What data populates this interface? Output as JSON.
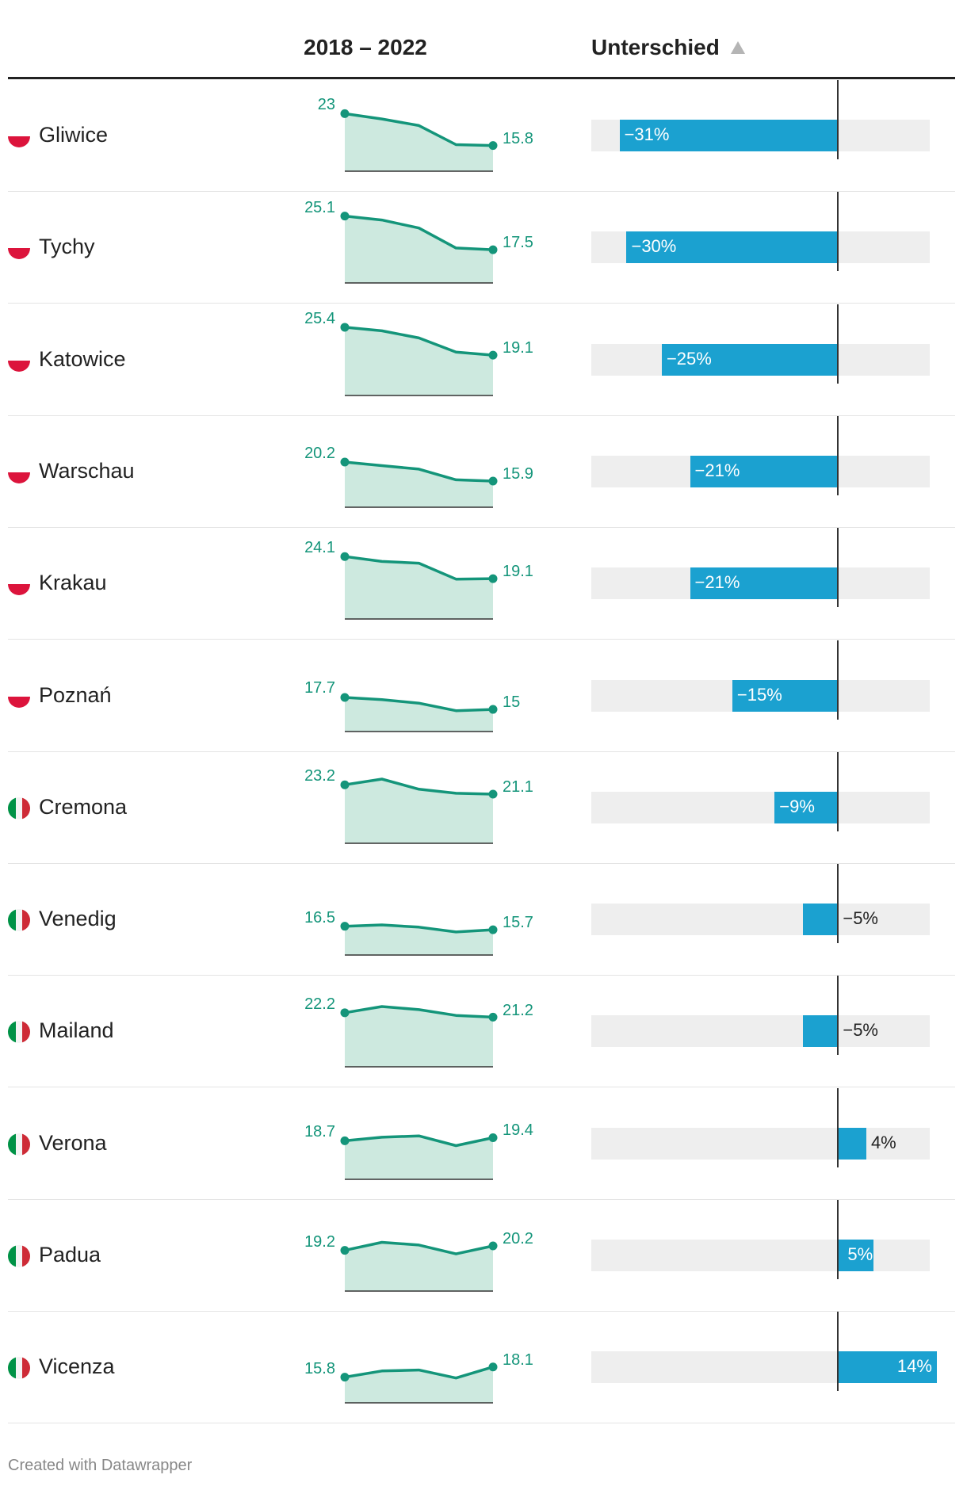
{
  "header": {
    "sparkline_label": "2018 – 2022",
    "difference_label": "Unterschied"
  },
  "chart_data": {
    "type": "table",
    "columns": [
      "",
      "2018 – 2022",
      "Unterschied"
    ],
    "sort": "Unterschied ascending",
    "diff_range": [
      -35,
      13
    ],
    "colors": {
      "sparkline": "#14957a",
      "sparkline_fill": "#cde9df",
      "bar": "#1ba1d0",
      "track": "#eeeeee"
    },
    "years": [
      2018,
      2019,
      2020,
      2021,
      2022
    ],
    "rows": [
      {
        "city": "Gliwice",
        "country": "pl",
        "values": [
          23,
          21.8,
          20.3,
          16.0,
          15.8
        ],
        "first_label": "23",
        "last_label": "15.8",
        "diff": -31,
        "diff_label": "−31%"
      },
      {
        "city": "Tychy",
        "country": "pl",
        "values": [
          25.1,
          24.2,
          22.4,
          17.9,
          17.5
        ],
        "first_label": "25.1",
        "last_label": "17.5",
        "diff": -30,
        "diff_label": "−30%"
      },
      {
        "city": "Katowice",
        "country": "pl",
        "values": [
          25.4,
          24.6,
          23.0,
          19.8,
          19.1
        ],
        "first_label": "25.4",
        "last_label": "19.1",
        "diff": -25,
        "diff_label": "−25%"
      },
      {
        "city": "Warschau",
        "country": "pl",
        "values": [
          20.2,
          19.4,
          18.6,
          16.2,
          15.9
        ],
        "first_label": "20.2",
        "last_label": "15.9",
        "diff": -21,
        "diff_label": "−21%"
      },
      {
        "city": "Krakau",
        "country": "pl",
        "values": [
          24.1,
          23.0,
          22.6,
          19.0,
          19.1
        ],
        "first_label": "24.1",
        "last_label": "19.1",
        "diff": -21,
        "diff_label": "−21%"
      },
      {
        "city": "Poznań",
        "country": "pl",
        "values": [
          17.7,
          17.2,
          16.4,
          14.7,
          15
        ],
        "first_label": "17.7",
        "last_label": "15",
        "diff": -15,
        "diff_label": "−15%"
      },
      {
        "city": "Cremona",
        "country": "it",
        "values": [
          23.2,
          24.5,
          22.2,
          21.3,
          21.1
        ],
        "first_label": "23.2",
        "last_label": "21.1",
        "diff": -9,
        "diff_label": "−9%"
      },
      {
        "city": "Venedig",
        "country": "it",
        "values": [
          16.5,
          16.8,
          16.3,
          15.2,
          15.7
        ],
        "first_label": "16.5",
        "last_label": "15.7",
        "diff": -5,
        "diff_label": "−5%"
      },
      {
        "city": "Mailand",
        "country": "it",
        "values": [
          22.2,
          23.6,
          22.9,
          21.6,
          21.2
        ],
        "first_label": "22.2",
        "last_label": "21.2",
        "diff": -5,
        "diff_label": "−5%"
      },
      {
        "city": "Verona",
        "country": "it",
        "values": [
          18.7,
          19.5,
          19.8,
          17.6,
          19.4
        ],
        "first_label": "18.7",
        "last_label": "19.4",
        "diff": 4,
        "diff_label": "4%"
      },
      {
        "city": "Padua",
        "country": "it",
        "values": [
          19.2,
          21.0,
          20.4,
          18.4,
          20.2
        ],
        "first_label": "19.2",
        "last_label": "20.2",
        "diff": 5,
        "diff_label": "5%"
      },
      {
        "city": "Vicenza",
        "country": "it",
        "values": [
          15.8,
          17.2,
          17.4,
          15.6,
          18.1
        ],
        "first_label": "15.8",
        "last_label": "18.1",
        "diff": 14,
        "diff_label": "14%"
      }
    ]
  },
  "footer": {
    "credit": "Created with Datawrapper"
  }
}
